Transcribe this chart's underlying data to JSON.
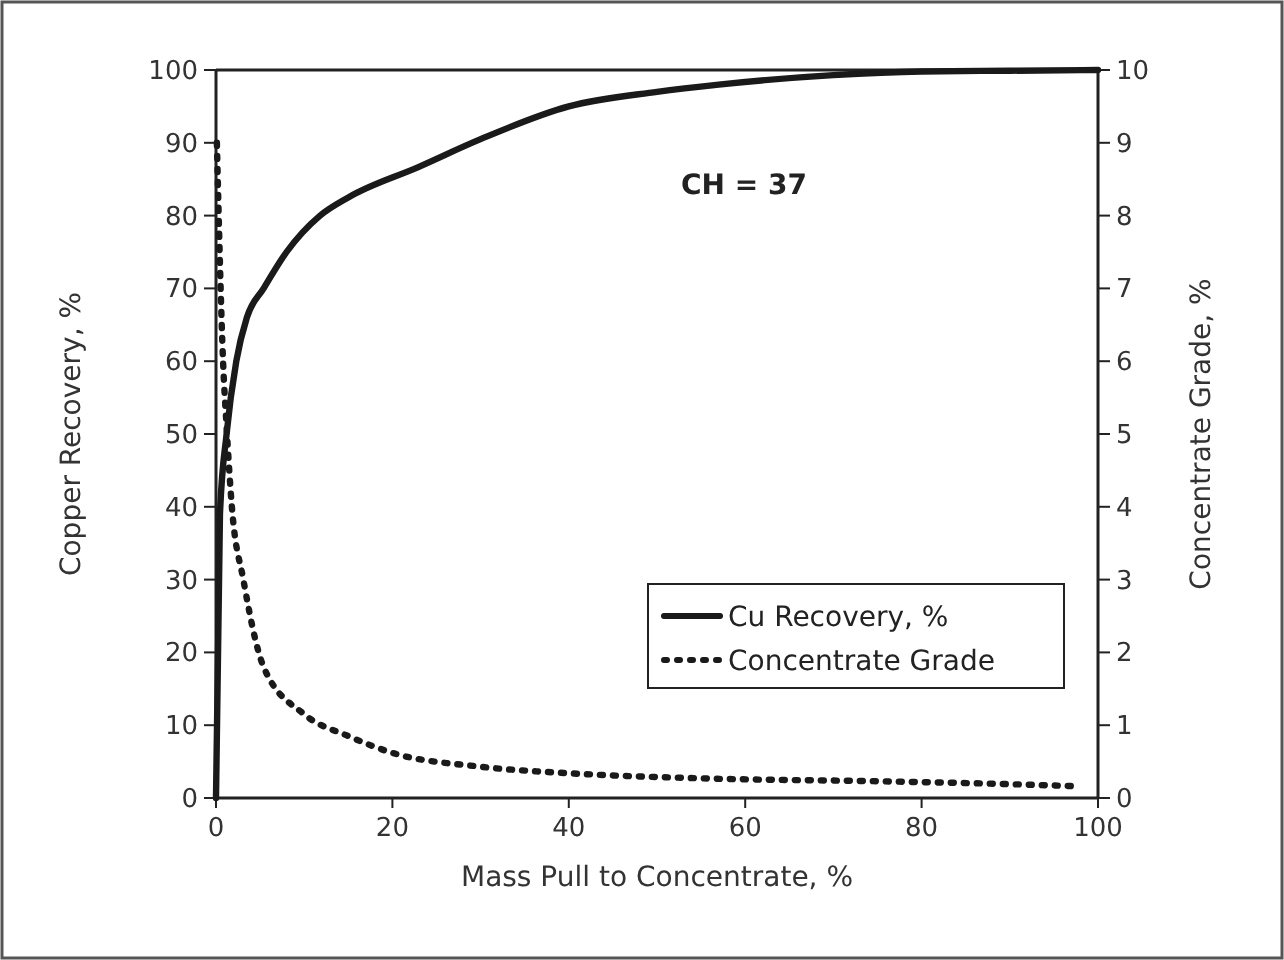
{
  "chart_data": {
    "type": "line",
    "xlabel": "Mass Pull to Concentrate, %",
    "ylabel": "Copper Recovery, %",
    "y2label": "Concentrate Grade, %",
    "annotations": [
      "CH = 37"
    ],
    "xlim": [
      0,
      100
    ],
    "xticks": [
      0,
      20,
      40,
      60,
      80,
      100
    ],
    "ylim": [
      0,
      100
    ],
    "yticks": [
      0,
      10,
      20,
      30,
      40,
      50,
      60,
      70,
      80,
      90,
      100
    ],
    "y2lim": [
      0,
      10
    ],
    "y2ticks": [
      0,
      1,
      2,
      3,
      4,
      5,
      6,
      7,
      8,
      9,
      10
    ],
    "legend": "right",
    "grid": false,
    "series": [
      {
        "name": "Cu Recovery, %",
        "color": "#1a1a1a",
        "line_style": "solid",
        "x": [
          0,
          0.45,
          1.2,
          2.3,
          3.5,
          5.4,
          8,
          11.8,
          15,
          23,
          30,
          40,
          50,
          57,
          70,
          80,
          90,
          100
        ],
        "values": [
          0,
          39,
          50,
          60,
          66,
          70,
          75,
          80,
          82.5,
          86.7,
          90.5,
          95,
          97,
          98,
          99.3,
          99.8,
          99.9,
          100
        ]
      },
      {
        "name": "Concentrate Grade",
        "color": "#1a1a1a",
        "line_style": "dotted",
        "axis": "y2",
        "x": [
          0.1,
          0.8,
          1.2,
          1.8,
          3.1,
          5.4,
          10,
          15,
          20,
          30,
          40,
          55,
          75,
          90,
          98
        ],
        "values": [
          9,
          6,
          5.1,
          4,
          3,
          1.8,
          1.15,
          0.85,
          0.62,
          0.43,
          0.34,
          0.27,
          0.23,
          0.19,
          0.16
        ]
      }
    ]
  }
}
